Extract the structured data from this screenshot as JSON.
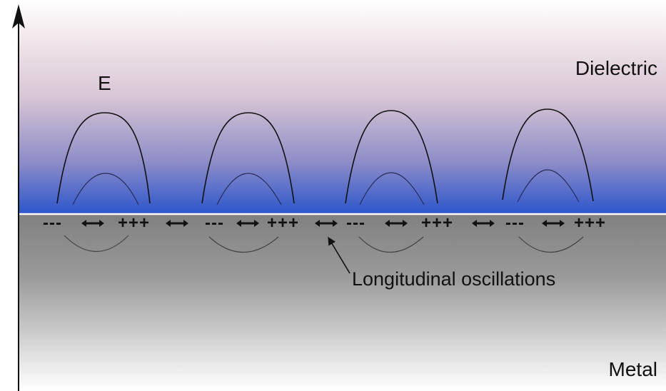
{
  "regions": {
    "dielectric_label": "Dielectric",
    "metal_label": "Metal"
  },
  "field": {
    "label": "E",
    "lobe_count": 4
  },
  "charges": {
    "negative": "---",
    "positive": "+++"
  },
  "annotation": {
    "oscillations_label": "Longitudinal oscillations"
  },
  "colors": {
    "dielectric_top": "#ffffff",
    "dielectric_mid": "#d8c6d4",
    "dielectric_interface": "#2a55cc",
    "metal_top": "#808080",
    "metal_bottom": "#ffffff",
    "line": "#111111"
  }
}
